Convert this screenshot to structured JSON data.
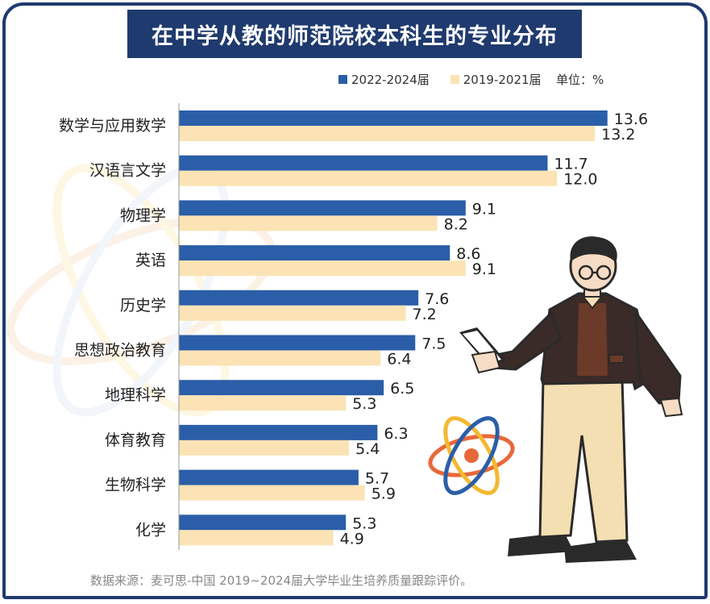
{
  "title": "在中学从教的师范院校本科生的专业分布",
  "unit_label": "单位：%",
  "source": "数据来源：麦可思-中国 2019~2024届大学毕业生培养质量跟踪评价。",
  "colors": {
    "frame": "#1f3a6e",
    "series_2022_2024": "#2b5ea8",
    "series_2019_2021": "#fbe3b5"
  },
  "chart_data": {
    "type": "bar",
    "orientation": "horizontal",
    "title": "在中学从教的师范院校本科生的专业分布",
    "categories": [
      "数学与应用数学",
      "汉语言文学",
      "物理学",
      "英语",
      "历史学",
      "思想政治教育",
      "地理科学",
      "体育教育",
      "生物科学",
      "化学"
    ],
    "series": [
      {
        "name": "2022-2024届",
        "color": "#2b5ea8",
        "values": [
          13.6,
          11.7,
          9.1,
          8.6,
          7.6,
          7.5,
          6.5,
          6.3,
          5.7,
          5.3
        ]
      },
      {
        "name": "2019-2021届",
        "color": "#fbe3b5",
        "values": [
          13.2,
          12.0,
          8.2,
          9.1,
          7.2,
          6.4,
          5.3,
          5.4,
          5.9,
          4.9
        ]
      }
    ],
    "value_labels": [
      [
        "13.6",
        "11.7",
        "9.1",
        "8.6",
        "7.6",
        "7.5",
        "6.5",
        "6.3",
        "5.7",
        "5.3"
      ],
      [
        "13.2",
        "12.0",
        "8.2",
        "9.1",
        "7.2",
        "6.4",
        "5.3",
        "5.4",
        "5.9",
        "4.9"
      ]
    ],
    "xlim": [
      0,
      14
    ],
    "legend_position": "top-right",
    "grid": false,
    "xlabel": "",
    "ylabel": ""
  }
}
